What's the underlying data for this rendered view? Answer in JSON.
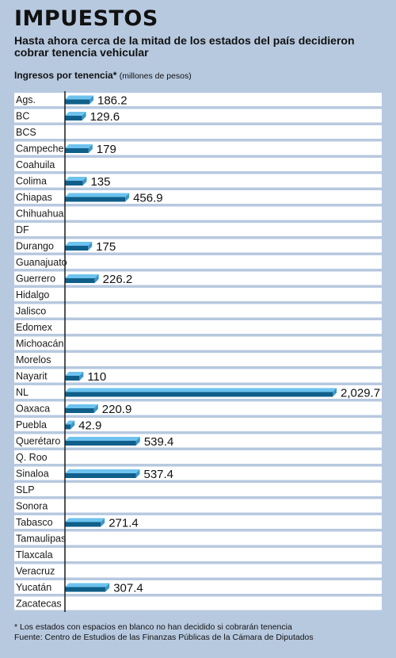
{
  "title": "IMPUESTOS",
  "subtitle": "Hasta ahora cerca de la mitad de los estados del país decidieron cobrar tenencia vehicular",
  "heading": {
    "label": "Ingresos por tenencia*",
    "unit": "(millones de pesos)"
  },
  "footnotes": {
    "note": "* Los estados con espacios en blanco no han decidido si cobrarán tenencia",
    "source": "Fuente: Centro de Estudios de las Finanzas Públicas de la Cámara de Diputados"
  },
  "colors": {
    "background": "#b7c9df",
    "row": "#ffffff",
    "bar_front": "#0f5f8a",
    "bar_top": "#6ec3ee",
    "axis": "#1a1a1a"
  },
  "chart_data": {
    "type": "bar",
    "orientation": "horizontal",
    "categories": [
      "Ags.",
      "BC",
      "BCS",
      "Campeche",
      "Coahuila",
      "Colima",
      "Chiapas",
      "Chihuahua",
      "DF",
      "Durango",
      "Guanajuato",
      "Guerrero",
      "Hidalgo",
      "Jalisco",
      "Edomex",
      "Michoacán",
      "Morelos",
      "Nayarit",
      "NL",
      "Oaxaca",
      "Puebla",
      "Querétaro",
      "Q. Roo",
      "Sinaloa",
      "SLP",
      "Sonora",
      "Tabasco",
      "Tamaulipas",
      "Tlaxcala",
      "Veracruz",
      "Yucatán",
      "Zacatecas"
    ],
    "values": [
      186.2,
      129.6,
      null,
      179,
      null,
      135,
      456.9,
      null,
      null,
      175,
      null,
      226.2,
      null,
      null,
      null,
      null,
      null,
      110,
      2029.7,
      220.9,
      42.9,
      539.4,
      null,
      537.4,
      null,
      null,
      271.4,
      null,
      null,
      null,
      307.4,
      null
    ],
    "value_labels": [
      "186.2",
      "129.6",
      "",
      "179",
      "",
      "135",
      "456.9",
      "",
      "",
      "175",
      "",
      "226.2",
      "",
      "",
      "",
      "",
      "",
      "110",
      "2,029.7",
      "220.9",
      "42.9",
      "539.4",
      "",
      "537.4",
      "",
      "",
      "271.4",
      "",
      "",
      "",
      "307.4",
      ""
    ],
    "xlim": [
      0,
      2029.7
    ],
    "grid": false,
    "legend": "none"
  }
}
